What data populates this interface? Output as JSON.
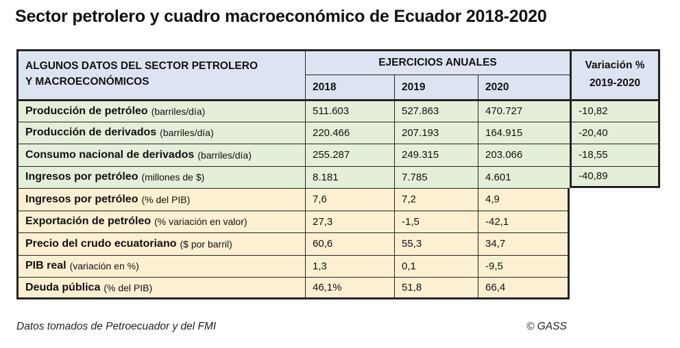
{
  "title": "Sector petrolero y cuadro macroeconómico de Ecuador 2018-2020",
  "header": {
    "label_line1": "ALGUNOS DATOS DEL SECTOR PETROLERO",
    "label_line2": "Y MACROECONÓMICOS",
    "group": "EJERCICIOS ANUALES",
    "years": [
      "2018",
      "2019",
      "2020"
    ],
    "variation_line1": "Variación %",
    "variation_line2": "2019-2020"
  },
  "rows": [
    {
      "name": "Producción de petróleo",
      "unit": "(barriles/día)",
      "v2018": "511.603",
      "v2019": "527.863",
      "v2020": "470.727",
      "var": "-10,82"
    },
    {
      "name": "Producción de derivados",
      "unit": "(barriles/día)",
      "v2018": "220.466",
      "v2019": "207.193",
      "v2020": "164.915",
      "var": "-20,40"
    },
    {
      "name": "Consumo nacional de derivados",
      "unit": "(barriles/día)",
      "v2018": "255.287",
      "v2019": "249.315",
      "v2020": "203.066",
      "var": "-18,55"
    },
    {
      "name": "Ingresos por petróleo",
      "unit": "(millones de $)",
      "v2018": "8.181",
      "v2019": "7.785",
      "v2020": "4.601",
      "var": "-40,89"
    },
    {
      "name": "Ingresos por petróleo",
      "unit": "(% del PIB)",
      "v2018": "7,6",
      "v2019": "7,2",
      "v2020": "4,9"
    },
    {
      "name": "Exportación de petróleo",
      "unit": "(% variación en valor)",
      "v2018": "27,3",
      "v2019": "-1,5",
      "v2020": "-42,1"
    },
    {
      "name": "Precio del crudo ecuatoriano",
      "unit": "($ por barril)",
      "v2018": "60,6",
      "v2019": "55,3",
      "v2020": "34,7"
    },
    {
      "name": "PIB real",
      "unit": "(variación en %)",
      "v2018": "1,3",
      "v2019": "0,1",
      "v2020": "-9,5"
    },
    {
      "name": "Deuda pública",
      "unit": "(% del PIB)",
      "v2018": "46,1%",
      "v2019": "51,8",
      "v2020": "66,4"
    }
  ],
  "colors": {
    "header": "#dde4f1",
    "green": "#e4efda",
    "yellow": "#fdf0d2"
  },
  "footer": {
    "source": "Datos tomados de Petroecuador y del FMI",
    "credit": "© GASS"
  }
}
